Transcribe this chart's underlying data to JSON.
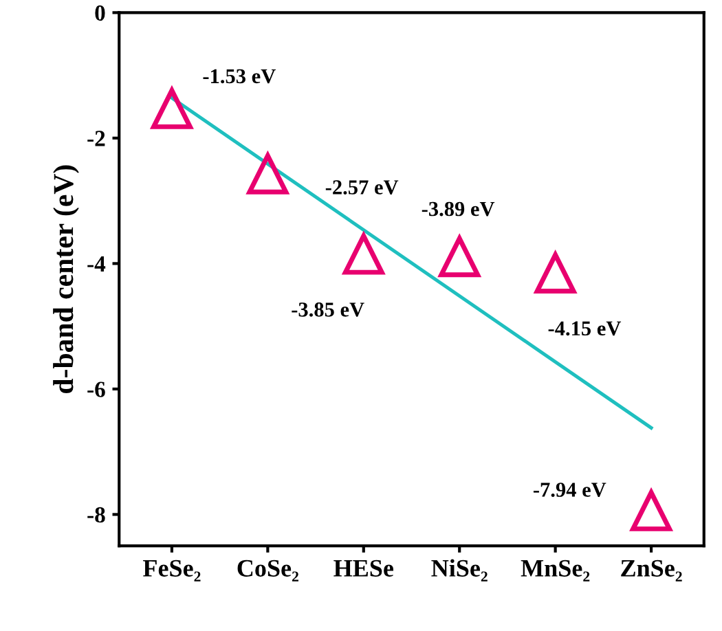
{
  "chart_data": {
    "type": "scatter",
    "ylabel": "d-band center (eV)",
    "categories": [
      "FeSe₂",
      "CoSe₂",
      "HESe",
      "NiSe₂",
      "MnSe₂",
      "ZnSe₂"
    ],
    "ylim": [
      -8.5,
      0
    ],
    "yticks": [
      -8,
      -6,
      -4,
      -2,
      0
    ],
    "grid": false,
    "series": [
      {
        "color": "#e8006f",
        "marker": "triangle",
        "values": [
          -1.53,
          -2.57,
          -3.85,
          -3.89,
          -4.15,
          -7.94
        ],
        "value_labels": [
          "-1.53 eV",
          "-2.57 eV",
          "-3.85 eV",
          "-3.89 eV",
          "-4.15 eV",
          "-7.94 eV"
        ]
      },
      {
        "type": "line",
        "color": "#1fbfbf",
        "line_style": "solid",
        "x": [
          "FeSe₂",
          "ZnSe₂"
        ],
        "values": [
          -1.36,
          -6.62
        ]
      }
    ]
  }
}
